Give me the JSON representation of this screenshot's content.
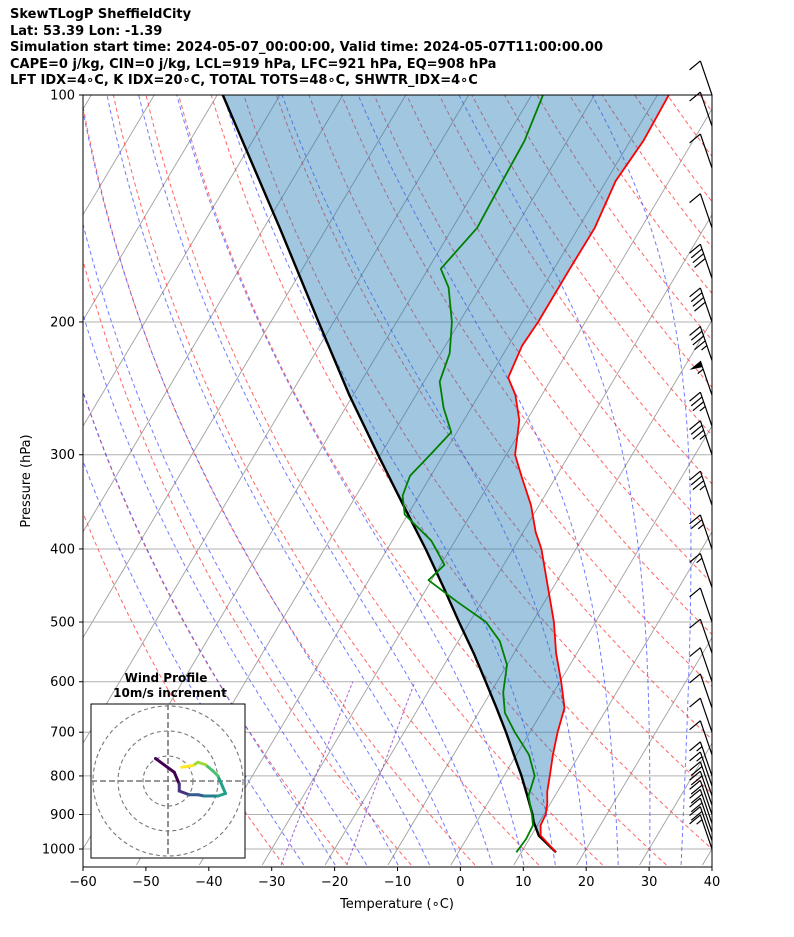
{
  "header": {
    "line1": "SkewTLogP SheffieldCity",
    "line2": "Lat: 53.39   Lon: -1.39",
    "line3": "Simulation start time: 2024-05-07_00:00:00, Valid time: 2024-05-07T11:00:00.00",
    "line4": "CAPE=0 j/kg, CIN=0 j/kg, LCL=919 hPa, LFC=921 hPa, EQ=908 hPa",
    "line5": "LFT IDX=4∘C, K IDX=20∘C, TOTAL TOTS=48∘C, SHWTR_IDX=4∘C"
  },
  "chart_data": {
    "type": "line",
    "skew": "skew-T log-P",
    "xlabel": "Temperature (∘C)",
    "ylabel": "Pressure (hPa)",
    "xlim": [
      -60,
      40
    ],
    "ylim": [
      1050,
      100
    ],
    "x_ticks": [
      -60,
      -50,
      -40,
      -30,
      -20,
      -10,
      0,
      10,
      20,
      30,
      40
    ],
    "y_ticks": [
      1000,
      900,
      800,
      700,
      600,
      500,
      400,
      300,
      200,
      100
    ],
    "y_scale": "log",
    "grid": true,
    "series": [
      {
        "role": "temperature",
        "color": "#ff0000",
        "points": [
          [
            1010,
            15.5
          ],
          [
            960,
            11.5
          ],
          [
            930,
            10.5
          ],
          [
            900,
            10.3
          ],
          [
            870,
            9.5
          ],
          [
            840,
            8.4
          ],
          [
            800,
            7.3
          ],
          [
            750,
            5.8
          ],
          [
            700,
            4.4
          ],
          [
            650,
            3.2
          ],
          [
            600,
            0.2
          ],
          [
            550,
            -3.3
          ],
          [
            500,
            -6.6
          ],
          [
            450,
            -10.8
          ],
          [
            400,
            -15.5
          ],
          [
            380,
            -18.0
          ],
          [
            350,
            -21.3
          ],
          [
            320,
            -25.6
          ],
          [
            300,
            -28.6
          ],
          [
            270,
            -31.2
          ],
          [
            250,
            -34.2
          ],
          [
            237,
            -37.0
          ],
          [
            215,
            -37.8
          ],
          [
            200,
            -37.5
          ],
          [
            170,
            -37.5
          ],
          [
            150,
            -37.4
          ],
          [
            130,
            -38.5
          ],
          [
            115,
            -37.9
          ],
          [
            100,
            -38.2
          ]
        ]
      },
      {
        "role": "dewpoint",
        "color": "#008000",
        "points": [
          [
            1010,
            9.2
          ],
          [
            970,
            9.5
          ],
          [
            930,
            9.3
          ],
          [
            900,
            8.1
          ],
          [
            850,
            5.8
          ],
          [
            800,
            4.9
          ],
          [
            750,
            2.0
          ],
          [
            700,
            -2.4
          ],
          [
            660,
            -5.8
          ],
          [
            620,
            -8.0
          ],
          [
            570,
            -10.0
          ],
          [
            530,
            -13.4
          ],
          [
            500,
            -17.4
          ],
          [
            470,
            -23.9
          ],
          [
            440,
            -30.5
          ],
          [
            420,
            -29.4
          ],
          [
            390,
            -33.8
          ],
          [
            360,
            -40.5
          ],
          [
            340,
            -42.6
          ],
          [
            320,
            -43.3
          ],
          [
            300,
            -42.1
          ],
          [
            280,
            -40.9
          ],
          [
            260,
            -44.4
          ],
          [
            240,
            -47.5
          ],
          [
            220,
            -48.6
          ],
          [
            200,
            -51.2
          ],
          [
            180,
            -55.0
          ],
          [
            170,
            -58.0
          ],
          [
            150,
            -56.1
          ],
          [
            130,
            -56.5
          ],
          [
            115,
            -56.8
          ],
          [
            100,
            -58.2
          ]
        ]
      },
      {
        "role": "parcel",
        "color": "#000000",
        "points": [
          [
            1010,
            15.5
          ],
          [
            960,
            11.2
          ],
          [
            921,
            9.1
          ],
          [
            900,
            8.2
          ],
          [
            850,
            5.6
          ],
          [
            800,
            2.8
          ],
          [
            750,
            -0.4
          ],
          [
            700,
            -3.8
          ],
          [
            650,
            -7.6
          ],
          [
            600,
            -11.8
          ],
          [
            550,
            -16.4
          ],
          [
            500,
            -21.7
          ],
          [
            450,
            -27.4
          ],
          [
            400,
            -33.9
          ],
          [
            350,
            -41.6
          ],
          [
            300,
            -50.4
          ],
          [
            250,
            -60.6
          ],
          [
            200,
            -72.4
          ],
          [
            150,
            -87.5
          ],
          [
            100,
            -109.1
          ]
        ]
      }
    ],
    "wind_barbs": [
      {
        "p": 1000,
        "kt": 15
      },
      {
        "p": 975,
        "kt": 20
      },
      {
        "p": 950,
        "kt": 20
      },
      {
        "p": 925,
        "kt": 20
      },
      {
        "p": 900,
        "kt": 20
      },
      {
        "p": 875,
        "kt": 20
      },
      {
        "p": 850,
        "kt": 20
      },
      {
        "p": 825,
        "kt": 15
      },
      {
        "p": 800,
        "kt": 15
      },
      {
        "p": 750,
        "kt": 10
      },
      {
        "p": 700,
        "kt": 10
      },
      {
        "p": 650,
        "kt": 10
      },
      {
        "p": 600,
        "kt": 10
      },
      {
        "p": 550,
        "kt": 10
      },
      {
        "p": 500,
        "kt": 10
      },
      {
        "p": 450,
        "kt": 15
      },
      {
        "p": 400,
        "kt": 25
      },
      {
        "p": 350,
        "kt": 35
      },
      {
        "p": 300,
        "kt": 35
      },
      {
        "p": 275,
        "kt": 35
      },
      {
        "p": 250,
        "kt": 55
      },
      {
        "p": 225,
        "kt": 45
      },
      {
        "p": 200,
        "kt": 40
      },
      {
        "p": 175,
        "kt": 40
      },
      {
        "p": 150,
        "kt": 10
      },
      {
        "p": 125,
        "kt": 10
      },
      {
        "p": 110,
        "kt": 10
      },
      {
        "p": 100,
        "kt": 10
      }
    ],
    "hodograph": {
      "title": "Wind Profile",
      "subtitle": "10m/s increment",
      "rings": [
        1,
        2,
        3
      ],
      "trace": [
        [
          -0.5,
          -0.9
        ],
        [
          0.25,
          -0.35
        ],
        [
          0.45,
          0.12
        ],
        [
          0.45,
          0.4
        ],
        [
          0.85,
          0.55
        ],
        [
          1.2,
          0.55
        ],
        [
          1.45,
          0.6
        ],
        [
          2.0,
          0.6
        ],
        [
          2.3,
          0.5
        ],
        [
          2.0,
          -0.2
        ],
        [
          1.8,
          -0.4
        ],
        [
          1.5,
          -0.65
        ],
        [
          1.2,
          -0.75
        ],
        [
          1.0,
          -0.62
        ],
        [
          0.55,
          -0.55
        ]
      ]
    }
  }
}
